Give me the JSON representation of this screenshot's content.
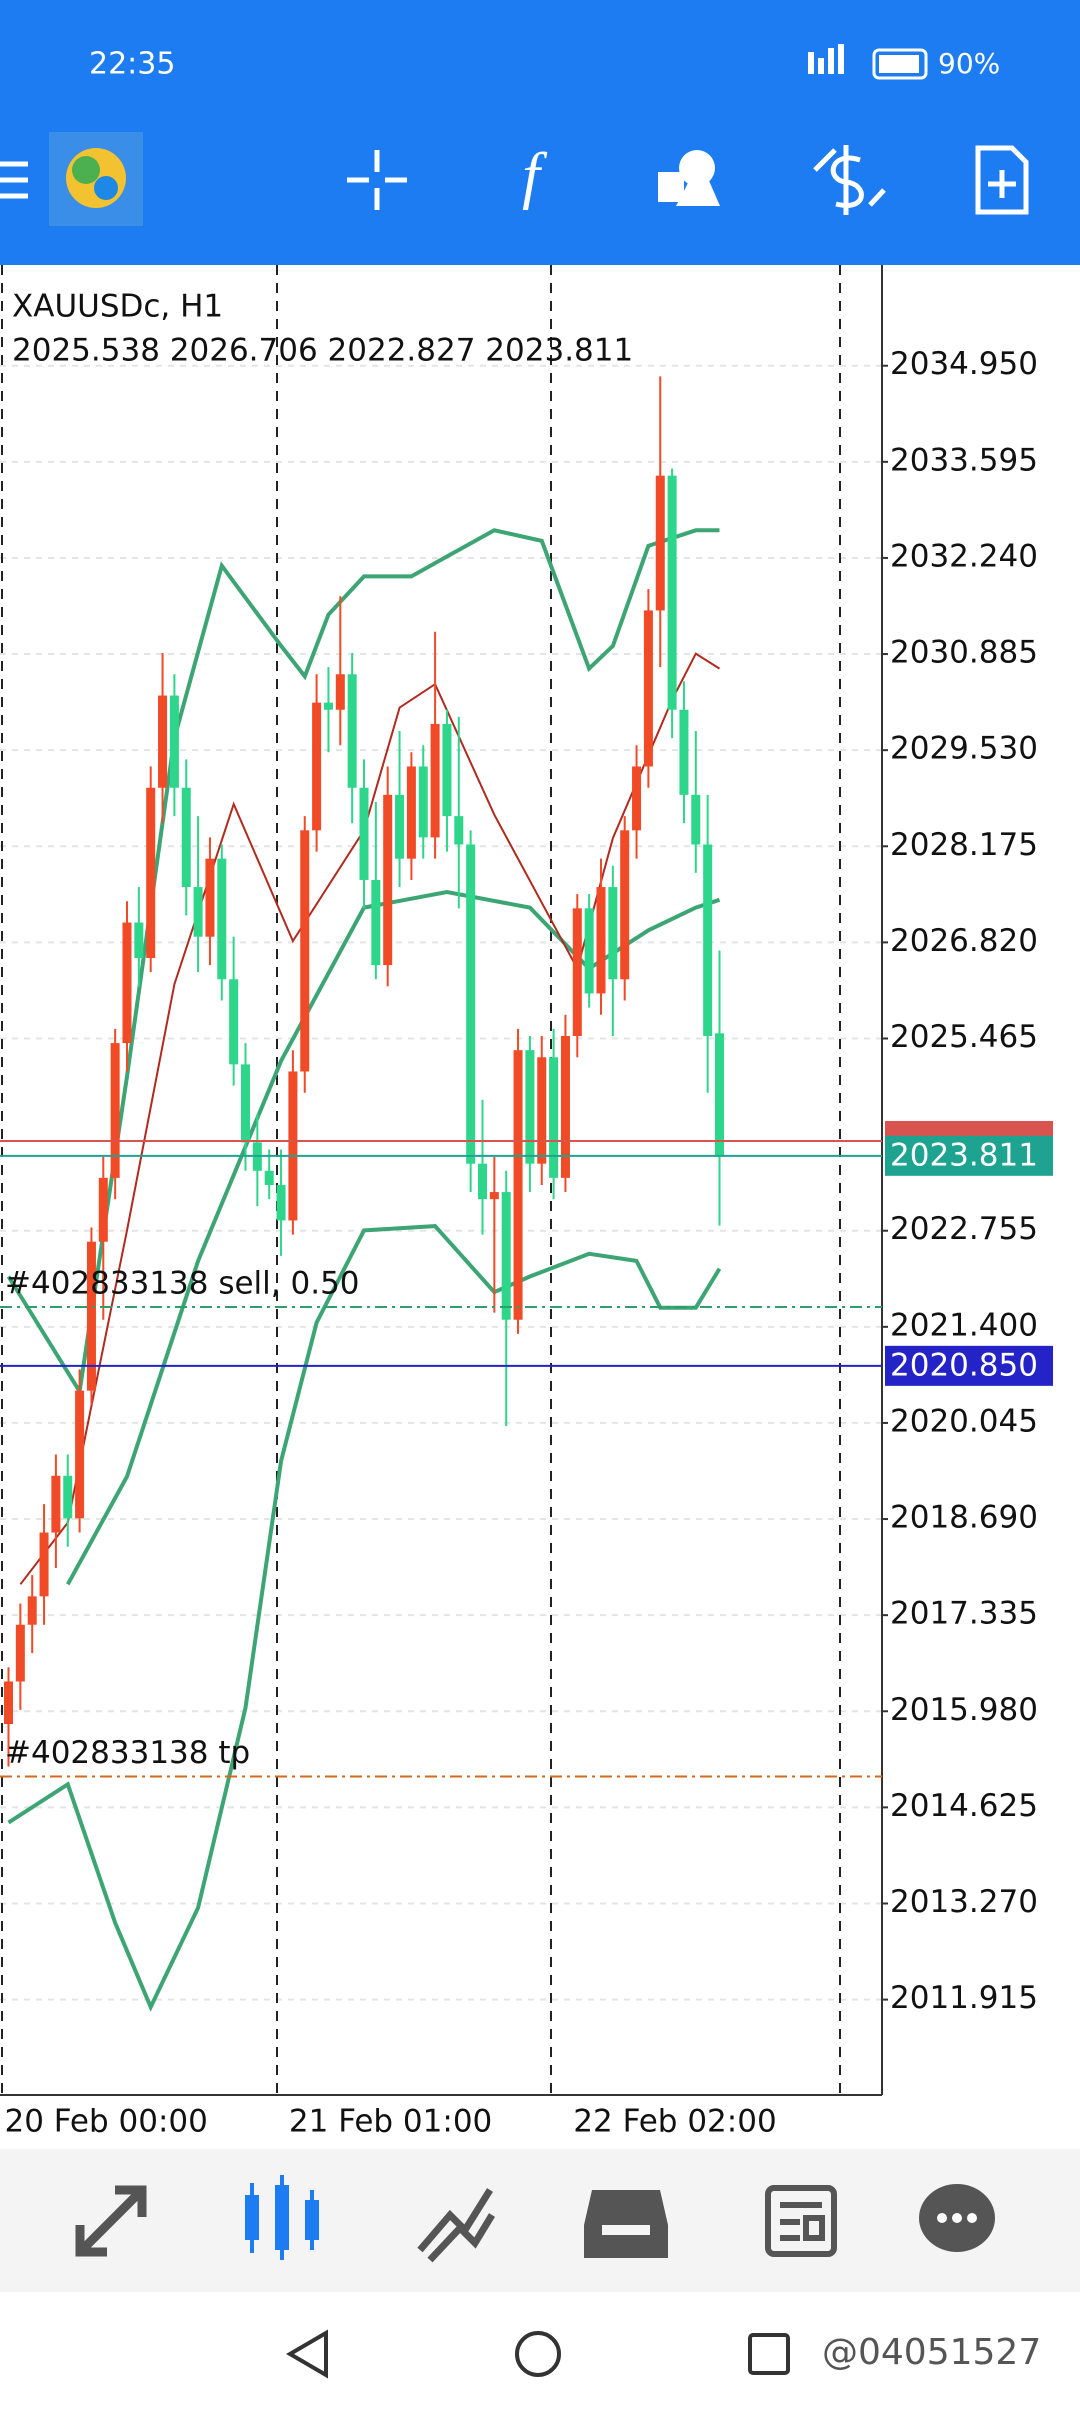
{
  "status_bar": {
    "time": "22:35",
    "battery": "90%"
  },
  "watermark": "@04051527",
  "chart_data": {
    "type": "candlestick",
    "title": "XAUUSDc, H1",
    "subtitle": "2025.538 2026.706 2022.827 2023.811",
    "categories": [
      "20 Feb 00:00",
      null,
      null,
      null,
      null,
      null,
      null,
      null,
      null,
      null,
      null,
      null,
      null,
      null,
      null,
      null,
      null,
      null,
      null,
      null,
      null,
      null,
      null,
      null,
      "21 Feb 01:00",
      null,
      null,
      null,
      null,
      null,
      null,
      null,
      null,
      null,
      null,
      null,
      null,
      null,
      null,
      null,
      null,
      null,
      null,
      null,
      null,
      null,
      null,
      null,
      "22 Feb 02:00",
      null,
      null,
      null,
      null,
      null,
      null,
      null,
      null,
      null,
      null,
      null,
      null
    ],
    "open": [
      2015.8,
      2016.4,
      2017.2,
      2017.6,
      2018.5,
      2019.3,
      2018.7,
      2020.5,
      2022.6,
      2023.5,
      2025.4,
      2027.1,
      2026.6,
      2029.0,
      2030.3,
      2029.0,
      2027.6,
      2026.9,
      2028.0,
      2026.3,
      2025.1,
      2024.0,
      2023.6,
      2023.4,
      2022.9,
      2025.0,
      2028.4,
      2030.2,
      2030.1,
      2030.6,
      2029.0,
      2027.7,
      2026.5,
      2028.9,
      2028.0,
      2029.3,
      2028.3,
      2029.9,
      2028.6,
      2028.2,
      2023.7,
      2023.2,
      2023.3,
      2021.5,
      2025.3,
      2023.7,
      2025.2,
      2023.5,
      2025.5,
      2027.3,
      2026.1,
      2027.6,
      2026.3,
      2028.4,
      2029.3,
      2031.5,
      2033.4,
      2030.1,
      2028.9,
      2028.2,
      2025.538
    ],
    "high": [
      2016.6,
      2017.5,
      2017.9,
      2018.9,
      2019.6,
      2019.6,
      2020.8,
      2022.8,
      2023.8,
      2025.6,
      2027.4,
      2027.6,
      2029.3,
      2030.9,
      2030.6,
      2029.4,
      2028.6,
      2028.3,
      2028.2,
      2026.9,
      2025.4,
      2024.4,
      2023.9,
      2023.9,
      2025.3,
      2028.6,
      2030.6,
      2030.7,
      2031.7,
      2030.9,
      2029.4,
      2028.8,
      2029.3,
      2029.8,
      2029.5,
      2029.6,
      2031.2,
      2030.1,
      2030.0,
      2028.4,
      2024.6,
      2023.8,
      2023.6,
      2025.6,
      2025.5,
      2025.5,
      2025.6,
      2025.8,
      2027.5,
      2027.5,
      2028.0,
      2027.9,
      2028.6,
      2029.6,
      2031.8,
      2034.8,
      2033.5,
      2030.5,
      2029.8,
      2028.9,
      2026.706
    ],
    "low": [
      2015.2,
      2016.0,
      2016.8,
      2017.2,
      2018.0,
      2018.3,
      2018.5,
      2020.3,
      2021.5,
      2023.2,
      2025.0,
      2026.2,
      2026.4,
      2028.5,
      2028.6,
      2027.2,
      2026.4,
      2026.5,
      2026.0,
      2024.8,
      2023.6,
      2023.1,
      2023.2,
      2022.4,
      2022.7,
      2024.7,
      2028.1,
      2029.5,
      2029.6,
      2028.5,
      2027.3,
      2026.3,
      2026.2,
      2027.6,
      2027.7,
      2028.0,
      2028.0,
      2028.1,
      2027.3,
      2023.3,
      2022.7,
      2021.6,
      2020.0,
      2021.3,
      2023.3,
      2023.4,
      2023.2,
      2023.3,
      2025.2,
      2025.9,
      2025.8,
      2025.5,
      2026.0,
      2028.0,
      2029.0,
      2030.7,
      2029.7,
      2028.5,
      2027.8,
      2024.7,
      2022.827
    ],
    "close": [
      2016.4,
      2017.2,
      2017.6,
      2018.5,
      2019.3,
      2018.7,
      2020.5,
      2022.6,
      2023.5,
      2025.4,
      2027.1,
      2026.6,
      2029.0,
      2030.3,
      2029.0,
      2027.6,
      2026.9,
      2028.0,
      2026.3,
      2025.1,
      2024.0,
      2023.6,
      2023.4,
      2022.9,
      2025.0,
      2028.4,
      2030.2,
      2030.1,
      2030.6,
      2029.0,
      2027.7,
      2026.5,
      2028.9,
      2028.0,
      2029.3,
      2028.3,
      2029.9,
      2028.6,
      2028.2,
      2023.7,
      2023.2,
      2023.3,
      2021.5,
      2025.3,
      2023.7,
      2025.2,
      2023.5,
      2025.5,
      2027.3,
      2026.1,
      2027.6,
      2026.3,
      2028.4,
      2029.3,
      2031.5,
      2033.4,
      2030.1,
      2028.9,
      2028.2,
      2025.5,
      2023.811
    ],
    "up_color": "#f04a26",
    "down_color": "#2ed68c",
    "ylim": [
      2010.57,
      2036.37
    ],
    "yticks": [
      {
        "value": 2034.95,
        "label": "2034.950"
      },
      {
        "value": 2033.595,
        "label": "2033.595"
      },
      {
        "value": 2032.24,
        "label": "2032.240"
      },
      {
        "value": 2030.885,
        "label": "2030.885"
      },
      {
        "value": 2029.53,
        "label": "2029.530"
      },
      {
        "value": 2028.175,
        "label": "2028.175"
      },
      {
        "value": 2026.82,
        "label": "2026.820"
      },
      {
        "value": 2025.465,
        "label": "2025.465"
      },
      {
        "value": 2022.755,
        "label": "2022.755"
      },
      {
        "value": 2021.4,
        "label": "2021.400"
      },
      {
        "value": 2020.045,
        "label": "2020.045"
      },
      {
        "value": 2018.69,
        "label": "2018.690"
      },
      {
        "value": 2017.335,
        "label": "2017.335"
      },
      {
        "value": 2015.98,
        "label": "2015.980"
      },
      {
        "value": 2014.625,
        "label": "2014.625"
      },
      {
        "value": 2013.27,
        "label": "2013.270"
      },
      {
        "value": 2011.915,
        "label": "2011.915"
      }
    ],
    "grid": true,
    "indicators": [
      {
        "color": "#3da574",
        "x": [
          0,
          6,
          10,
          14,
          18,
          23,
          25,
          27,
          30,
          34,
          37,
          41,
          45,
          49,
          51,
          54,
          58,
          60
        ],
        "values": [
          2022.11,
          2020.49,
          2024.93,
          2029.7,
          2032.13,
          2031.0,
          2030.57,
          2031.44,
          2031.98,
          2031.98,
          2032.26,
          2032.63,
          2032.48,
          2030.68,
          2031.0,
          2032.41,
          2032.63,
          2032.63
        ]
      },
      {
        "color": "#3da574",
        "x": [
          5,
          10,
          16,
          23,
          30,
          37,
          44,
          49,
          54,
          58,
          60
        ],
        "values": [
          2017.77,
          2019.29,
          2022.33,
          2025.15,
          2027.31,
          2027.53,
          2027.31,
          2026.45,
          2026.99,
          2027.31,
          2027.42
        ]
      },
      {
        "color": "#3da574",
        "x": [
          0,
          5,
          9,
          12,
          16,
          20,
          23,
          26,
          30,
          36,
          41,
          44,
          49,
          53,
          55,
          58,
          60
        ],
        "values": [
          2014.41,
          2014.95,
          2013.0,
          2011.81,
          2013.21,
          2016.03,
          2019.51,
          2021.46,
          2022.76,
          2022.82,
          2021.89,
          2022.11,
          2022.43,
          2022.33,
          2021.67,
          2021.67,
          2022.22
        ]
      },
      {
        "color": "#b22a1e",
        "x": [
          1,
          5,
          10,
          14,
          19,
          24,
          30,
          33,
          36,
          41,
          48,
          51,
          56,
          58,
          60
        ],
        "values": [
          2017.77,
          2018.64,
          2022.76,
          2026.23,
          2028.77,
          2026.84,
          2028.4,
          2030.13,
          2030.46,
          2028.62,
          2026.45,
          2028.29,
          2030.24,
          2030.89,
          2030.68
        ]
      }
    ],
    "lines": [
      {
        "value": 2024.02,
        "color": "#d9534f"
      },
      {
        "value": 2023.811,
        "label": "2023.811",
        "color": "#1fa391"
      },
      {
        "value": 2020.85,
        "label": "2020.850",
        "color": "#2323c8"
      },
      {
        "value": 2021.68,
        "text": "#402833138 sell, 0.50",
        "color": "#2e9e6a",
        "dash": true
      },
      {
        "value": 2015.06,
        "text": "#402833138 tp",
        "color": "#d2691e",
        "dash": true
      }
    ]
  }
}
